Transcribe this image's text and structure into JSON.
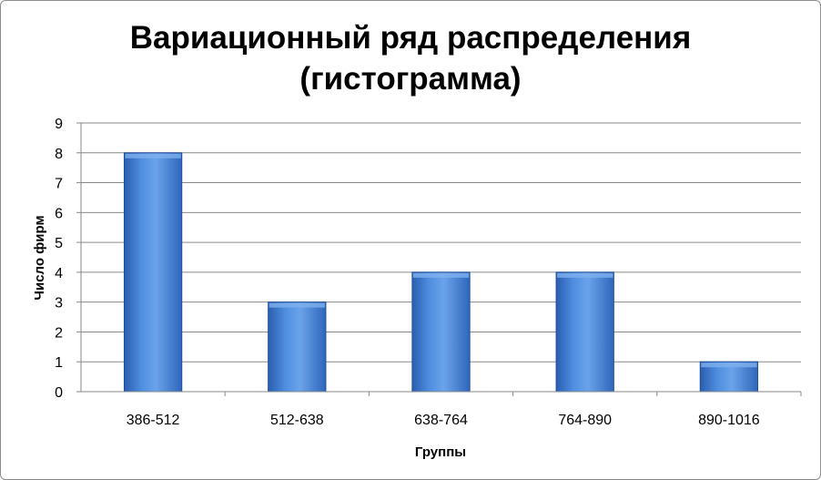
{
  "chart_data": {
    "type": "bar",
    "title_line1": "Вариационный ряд распределения",
    "title_line2": "(гистограмма)",
    "xlabel": "Группы",
    "ylabel": "Число фирм",
    "categories": [
      "386-512",
      "512-638",
      "638-764",
      "764-890",
      "890-1016"
    ],
    "values": [
      8,
      3,
      4,
      4,
      1
    ],
    "ylim": [
      0,
      9
    ],
    "yticks": [
      "0",
      "1",
      "2",
      "3",
      "4",
      "5",
      "6",
      "7",
      "8",
      "9"
    ],
    "grid": true,
    "legend": "none",
    "bar_color": "#3f7fd6",
    "bar_color_dark": "#1f4f9c",
    "bar_color_light": "#7fb0ee"
  }
}
